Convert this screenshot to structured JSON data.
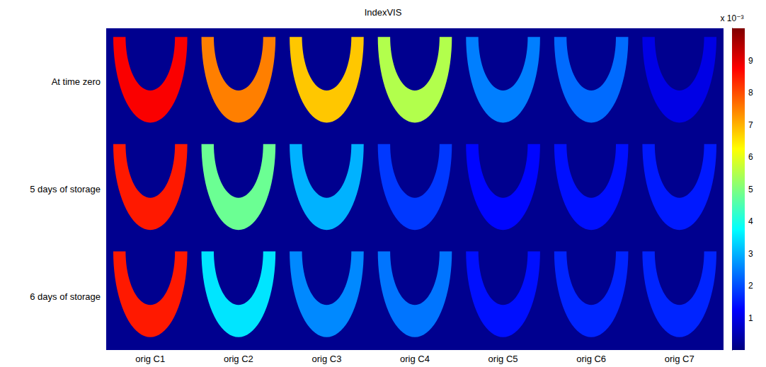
{
  "chart_data": {
    "type": "heatmap",
    "title": "IndexVIS",
    "categories": [
      "orig C1",
      "orig C2",
      "orig C3",
      "orig C4",
      "orig C5",
      "orig C6",
      "orig C7"
    ],
    "rows": [
      "At time zero",
      "5 days of storage",
      "6 days of storage"
    ],
    "cells": [
      [
        8.8,
        7.5,
        6.8,
        5.5,
        2.5,
        2.3,
        1.0
      ],
      [
        8.5,
        4.8,
        3.0,
        1.8,
        1.3,
        1.4,
        1.5
      ],
      [
        8.5,
        3.5,
        2.6,
        2.4,
        1.4,
        1.6,
        1.6
      ]
    ],
    "colorbar": {
      "range": [
        0,
        10
      ],
      "ticks": [
        1,
        2,
        3,
        4,
        5,
        6,
        7,
        8,
        9
      ],
      "label": "x 10⁻³"
    }
  }
}
